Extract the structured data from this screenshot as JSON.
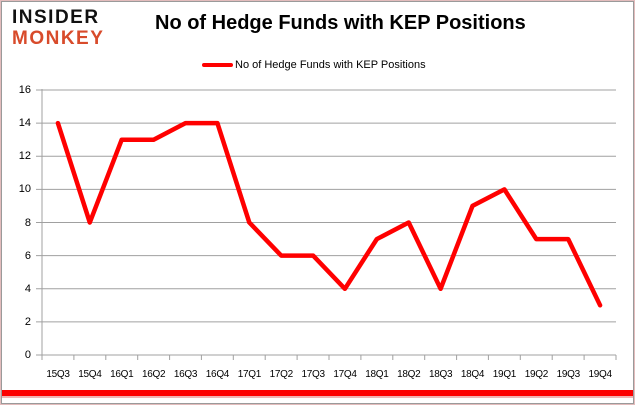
{
  "header": {
    "brand_line1": "INSIDER",
    "brand_line2": "MONKEY",
    "title": "No of Hedge Funds with KEP Positions"
  },
  "legend": {
    "label": "No of Hedge Funds with KEP Positions"
  },
  "chart_data": {
    "type": "line",
    "title": "No of Hedge Funds with KEP Positions",
    "categories": [
      "15Q3",
      "15Q4",
      "16Q1",
      "16Q2",
      "16Q3",
      "16Q4",
      "17Q1",
      "17Q2",
      "17Q3",
      "17Q4",
      "18Q1",
      "18Q2",
      "18Q3",
      "18Q4",
      "19Q1",
      "19Q2",
      "19Q3",
      "19Q4"
    ],
    "series": [
      {
        "name": "No of Hedge Funds with KEP Positions",
        "color": "#ff0000",
        "values": [
          14,
          8,
          13,
          13,
          14,
          14,
          8,
          6,
          6,
          4,
          7,
          8,
          4,
          9,
          10,
          7,
          7,
          3
        ]
      }
    ],
    "xlabel": "",
    "ylabel": "",
    "ylim": [
      0,
      16
    ],
    "ytick_step": 2,
    "grid": true,
    "legend_position": "top",
    "gridline_color": "#a0a0a0",
    "axis_color": "#a0a0a0"
  },
  "colors": {
    "accent_red": "#ff0000",
    "brand_orange": "#d84b2b",
    "bottom_bar": "#fc0101"
  }
}
